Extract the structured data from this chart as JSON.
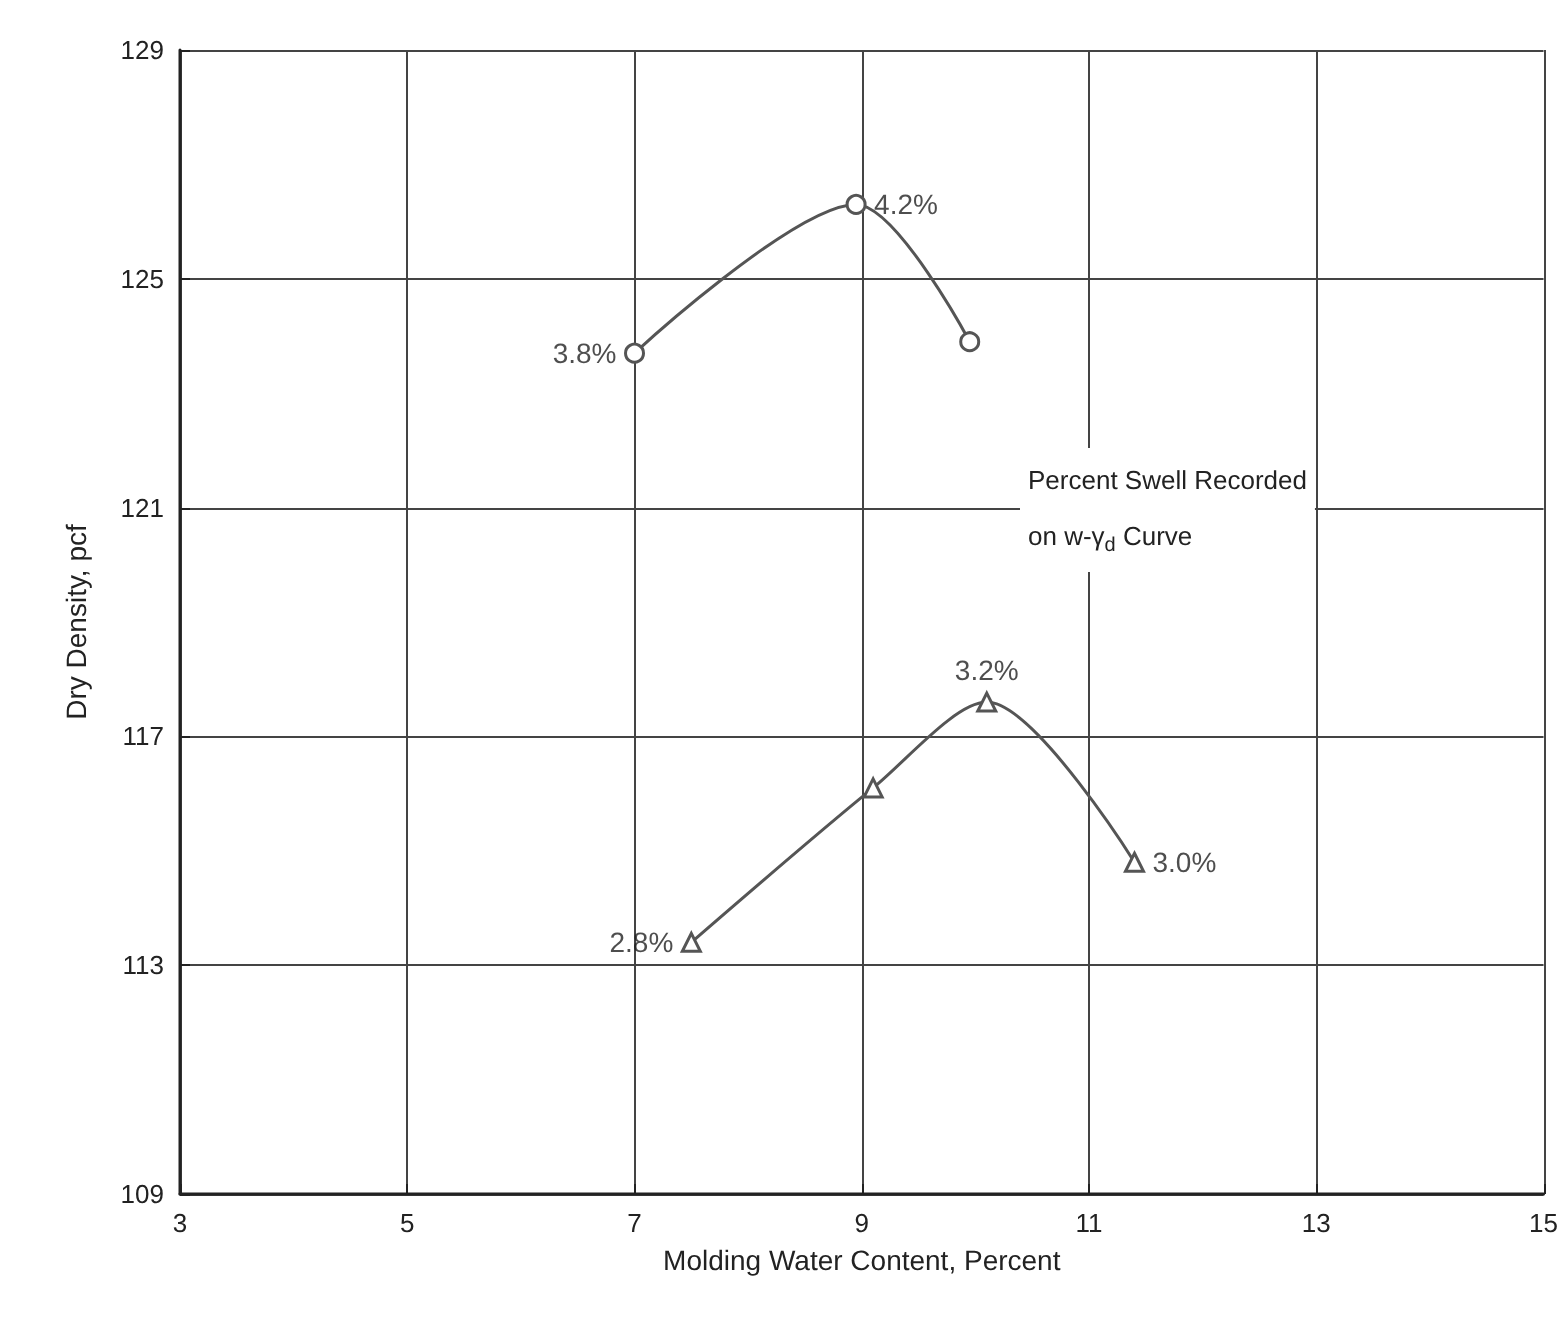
{
  "chart_data": {
    "type": "line",
    "xlabel": "Molding Water Content, Percent",
    "ylabel": "Dry Density, pcf",
    "xlim": [
      3,
      15
    ],
    "xticks": [
      3,
      5,
      7,
      9,
      11,
      13,
      15
    ],
    "ylim": [
      109,
      129
    ],
    "yticks": [
      109,
      113,
      117,
      121,
      125,
      129
    ],
    "grid": true,
    "series": [
      {
        "color": "#555555",
        "marker": "circle",
        "x": [
          7.0,
          8.95,
          9.95
        ],
        "values": [
          123.7,
          126.3,
          123.9
        ]
      },
      {
        "color": "#555555",
        "marker": "triangle",
        "x": [
          7.5,
          9.1,
          10.1,
          11.4
        ],
        "values": [
          113.4,
          116.1,
          117.6,
          114.8
        ]
      }
    ],
    "annotations": [
      {
        "text": "3.8%",
        "x": 7.0,
        "y": 123.7
      },
      {
        "text": "4.2%",
        "x": 8.95,
        "y": 126.3
      },
      {
        "text": "2.8%",
        "x": 7.5,
        "y": 113.4
      },
      {
        "text": "3.2%",
        "x": 10.1,
        "y": 117.6
      },
      {
        "text": "3.0%",
        "x": 11.4,
        "y": 114.8
      },
      "Percent Swell Recorded on w-γ$_{d}$ Curve"
    ]
  }
}
